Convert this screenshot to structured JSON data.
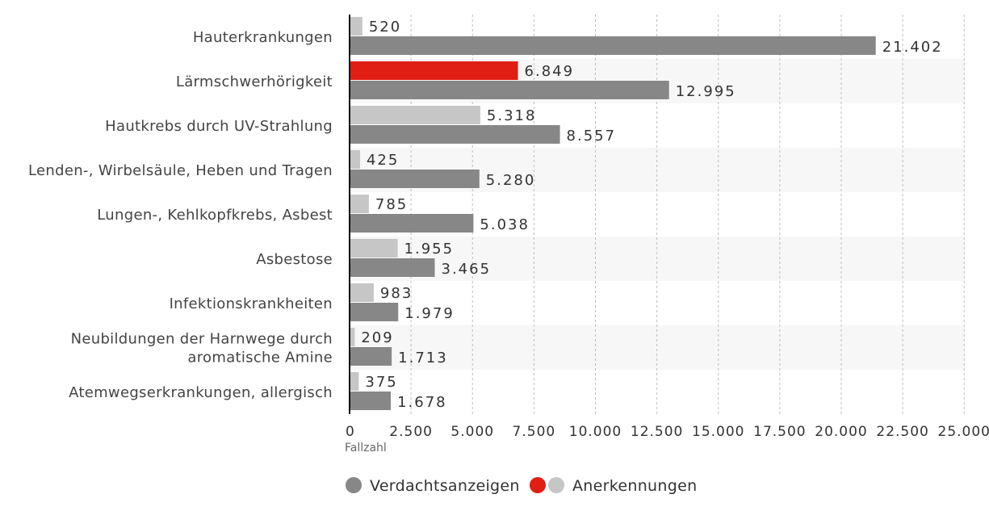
{
  "chart_data": {
    "type": "bar",
    "orientation": "horizontal",
    "categories": [
      [
        "Hauterkrankungen"
      ],
      [
        "Lärmschwerhörigkeit"
      ],
      [
        "Hautkrebs durch UV-Strahlung"
      ],
      [
        "Lenden-, Wirbelsäule, Heben und Tragen"
      ],
      [
        "Lungen-, Kehlkopfkrebs, Asbest"
      ],
      [
        "Asbestose"
      ],
      [
        "Infektionskrankheiten"
      ],
      [
        "Neubildungen der Harnwege durch",
        "aromatische Amine"
      ],
      [
        "Atemwegserkrankungen, allergisch"
      ]
    ],
    "series": [
      {
        "name": "Anerkennungen",
        "color": "#c6c6c6",
        "highlight_color": "#e01e14",
        "highlight_index": 1,
        "values": [
          520,
          6849,
          5318,
          425,
          785,
          1955,
          983,
          209,
          375
        ],
        "labels": [
          "520",
          "6.849",
          "5.318",
          "425",
          "785",
          "1.955",
          "983",
          "209",
          "375"
        ]
      },
      {
        "name": "Verdachtsanzeigen",
        "color": "#878787",
        "values": [
          21402,
          12995,
          8557,
          5280,
          5038,
          3465,
          1979,
          1713,
          1678
        ],
        "labels": [
          "21.402",
          "12.995",
          "8.557",
          "5.280",
          "5.038",
          "3.465",
          "1.979",
          "1.713",
          "1.678"
        ]
      }
    ],
    "xlabel": "Fallzahl",
    "xlim": [
      0,
      25000
    ],
    "xticks": [
      0,
      2500,
      5000,
      7500,
      10000,
      12500,
      15000,
      17500,
      20000,
      22500,
      25000
    ],
    "xtick_labels": [
      "0",
      "2.500",
      "5.000",
      "7.500",
      "10.000",
      "12.500",
      "15.000",
      "17.500",
      "20.000",
      "22.500",
      "25.000"
    ],
    "grid": "vertical dashed",
    "legend": {
      "placement": "bottom-center",
      "entries": [
        {
          "label": "Verdachtsanzeigen",
          "colors": [
            "#878787"
          ]
        },
        {
          "label": "Anerkennungen",
          "colors": [
            "#e01e14",
            "#c6c6c6"
          ]
        }
      ]
    }
  }
}
